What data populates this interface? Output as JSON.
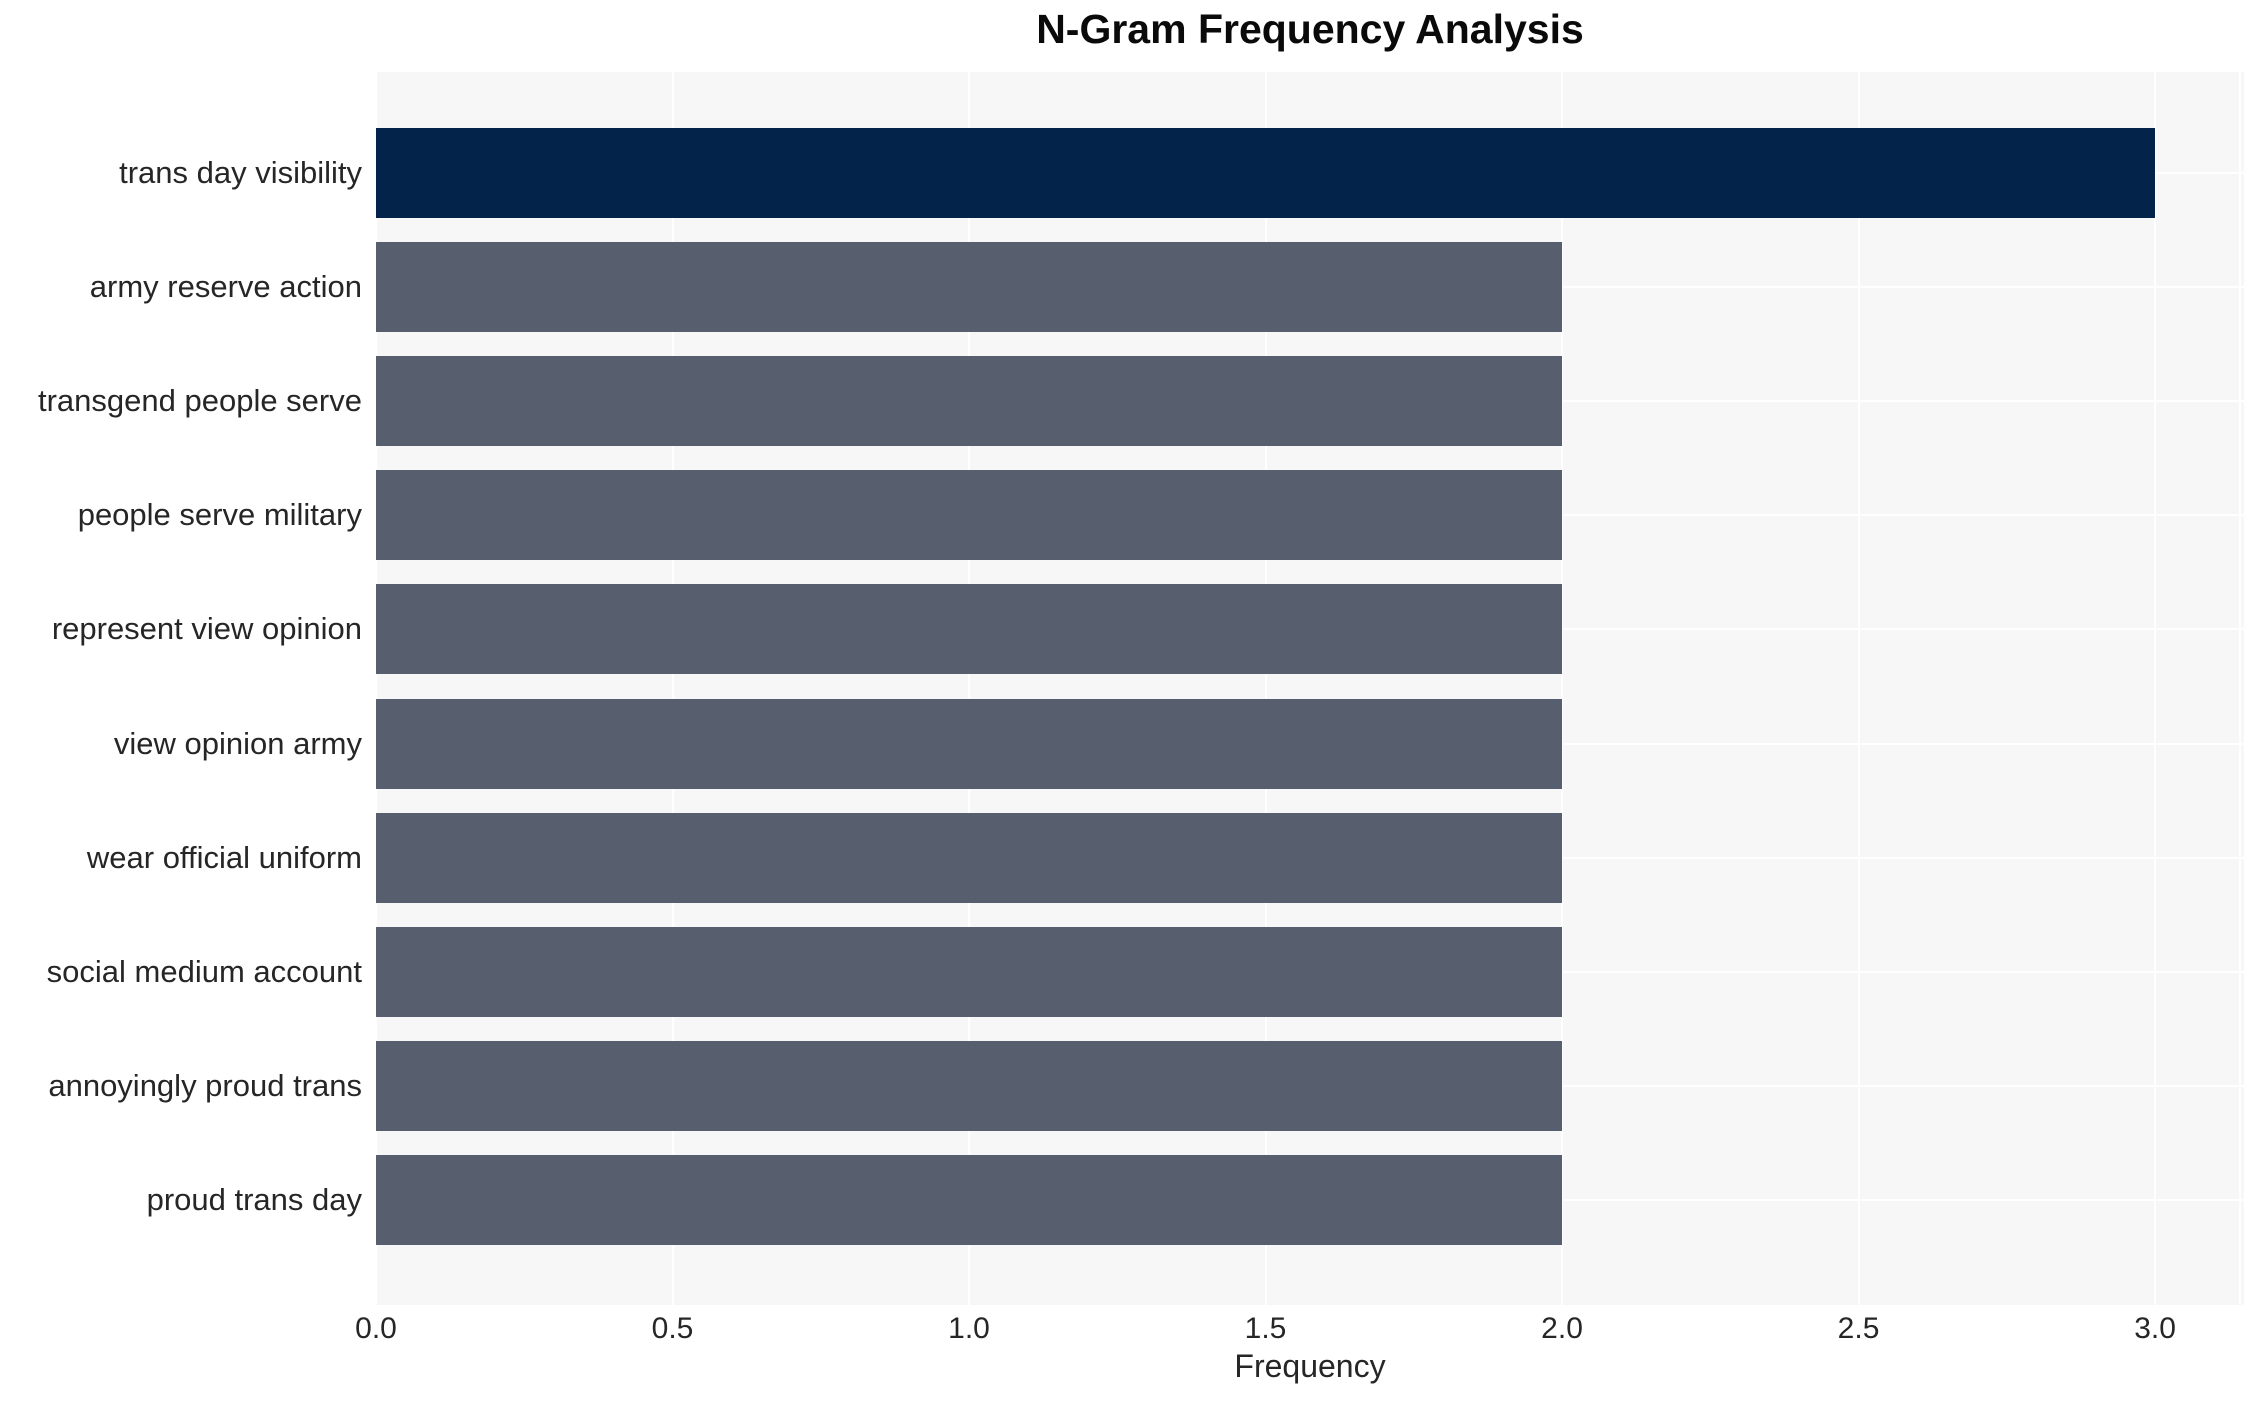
{
  "page": {
    "background_color": "#ffffff"
  },
  "chart_data": {
    "type": "bar",
    "orientation": "horizontal",
    "title": "N-Gram Frequency Analysis",
    "xlabel": "Frequency",
    "ylabel": "",
    "categories": [
      "trans day visibility",
      "army reserve action",
      "transgend people serve",
      "people serve military",
      "represent view opinion",
      "view opinion army",
      "wear official uniform",
      "social medium account",
      "annoyingly proud trans",
      "proud trans day"
    ],
    "values": [
      3.0,
      2.0,
      2.0,
      2.0,
      2.0,
      2.0,
      2.0,
      2.0,
      2.0,
      2.0
    ],
    "bar_colors": [
      "#03234b",
      "#575e6e",
      "#575e6e",
      "#575e6e",
      "#575e6e",
      "#575e6e",
      "#575e6e",
      "#575e6e",
      "#575e6e",
      "#575e6e"
    ],
    "xtick_values": [
      0.0,
      0.5,
      1.0,
      1.5,
      2.0,
      2.5,
      3.0
    ],
    "xtick_labels": [
      "0.0",
      "0.5",
      "1.0",
      "1.5",
      "2.0",
      "2.5",
      "3.0"
    ],
    "xlim": [
      0,
      3.15
    ],
    "grid": true,
    "legend": false,
    "panel_background": "#f7f7f8",
    "gridline_color": "#ffffff",
    "text_color": "#262626",
    "title_color": "#0a0a0a",
    "highlight_color": "#03234b",
    "default_bar_color": "#575e6e"
  }
}
